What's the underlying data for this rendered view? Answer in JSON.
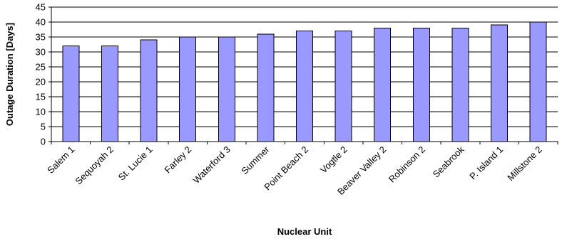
{
  "chart_data": {
    "type": "bar",
    "categories": [
      "Salem 1",
      "Sequoyah 2",
      "St. Lucie 1",
      "Farley 2",
      "Waterford 3",
      "Summer",
      "Point Beach 2",
      "Vogtle 2",
      "Beaver Valley 2",
      "Robinson 2",
      "Seabrook",
      "P. Island 1",
      "Millstone 2"
    ],
    "values": [
      32,
      32,
      34,
      35,
      35,
      36,
      37,
      37,
      38,
      38,
      38,
      39,
      40
    ],
    "title": "",
    "xlabel": "Nuclear Unit",
    "ylabel": "Outage Duration [Days]",
    "ylim": [
      0,
      45
    ],
    "yticks": [
      0,
      5,
      10,
      15,
      20,
      25,
      30,
      35,
      40,
      45
    ],
    "grid": true,
    "legend": "none",
    "colors": {
      "bar_fill": "#9999ff",
      "bar_stroke": "#000000",
      "grid": "#000000",
      "axis": "#000000"
    }
  }
}
